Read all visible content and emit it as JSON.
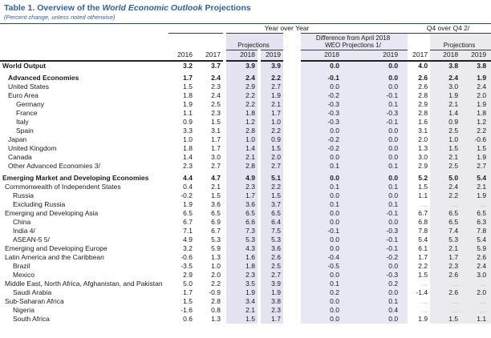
{
  "title": {
    "prefix": "Table 1. Overview of the ",
    "italic": "World Economic Outlook",
    "suffix": " Projections"
  },
  "subtitle": "(Percent change, unless noted otherwise)",
  "header": {
    "group_yoy": "Year over Year",
    "group_q4": "Q4 over Q4 2/",
    "projections_label": "Projections",
    "diff_label_line1": "Difference from April 2018",
    "diff_label_line2": "WEO Projections 1/",
    "q4_projections_label": "Projections",
    "years_yoy": [
      "2016",
      "2017",
      "2018",
      "2019"
    ],
    "years_diff": [
      "2018",
      "2019"
    ],
    "years_q4": [
      "2017",
      "2018",
      "2019"
    ]
  },
  "colors": {
    "title_blue": "#2d5fae",
    "projection_shade": "#e3e3f1",
    "difference_shade": "#e8e8f4",
    "q4_shade": "#eaeaef"
  },
  "rows": [
    {
      "label": "World Output",
      "indent": 3,
      "bold": true,
      "gap": false,
      "yoy": [
        "3.2",
        "3.7",
        "3.9",
        "3.9"
      ],
      "diff": [
        "0.0",
        "0.0"
      ],
      "q4": [
        "4.0",
        "3.8",
        "3.8"
      ]
    },
    {
      "label": "Advanced Economies",
      "indent": 10,
      "bold": true,
      "gap": true,
      "yoy": [
        "1.7",
        "2.4",
        "2.4",
        "2.2"
      ],
      "diff": [
        "-0.1",
        "0.0"
      ],
      "q4": [
        "2.6",
        "2.4",
        "1.9"
      ]
    },
    {
      "label": "United States",
      "indent": 10,
      "bold": false,
      "gap": false,
      "yoy": [
        "1.5",
        "2.3",
        "2.9",
        "2.7"
      ],
      "diff": [
        "0.0",
        "0.0"
      ],
      "q4": [
        "2.6",
        "3.0",
        "2.4"
      ]
    },
    {
      "label": "Euro Area",
      "indent": 10,
      "bold": false,
      "gap": false,
      "yoy": [
        "1.8",
        "2.4",
        "2.2",
        "1.9"
      ],
      "diff": [
        "-0.2",
        "-0.1"
      ],
      "q4": [
        "2.8",
        "1.9",
        "2.0"
      ]
    },
    {
      "label": "Germany",
      "indent": 20,
      "bold": false,
      "gap": false,
      "yoy": [
        "1.9",
        "2.5",
        "2.2",
        "2.1"
      ],
      "diff": [
        "-0.3",
        "0.1"
      ],
      "q4": [
        "2.9",
        "2.1",
        "1.9"
      ]
    },
    {
      "label": "France",
      "indent": 20,
      "bold": false,
      "gap": false,
      "yoy": [
        "1.1",
        "2.3",
        "1.8",
        "1.7"
      ],
      "diff": [
        "-0.3",
        "-0.3"
      ],
      "q4": [
        "2.8",
        "1.4",
        "1.8"
      ]
    },
    {
      "label": "Italy",
      "indent": 20,
      "bold": false,
      "gap": false,
      "yoy": [
        "0.9",
        "1.5",
        "1.2",
        "1.0"
      ],
      "diff": [
        "-0.3",
        "-0.1"
      ],
      "q4": [
        "1.6",
        "0.9",
        "1.2"
      ]
    },
    {
      "label": "Spain",
      "indent": 20,
      "bold": false,
      "gap": false,
      "yoy": [
        "3.3",
        "3.1",
        "2.8",
        "2.2"
      ],
      "diff": [
        "0.0",
        "0.0"
      ],
      "q4": [
        "3.1",
        "2.5",
        "2.2"
      ]
    },
    {
      "label": "Japan",
      "indent": 10,
      "bold": false,
      "gap": false,
      "yoy": [
        "1.0",
        "1.7",
        "1.0",
        "0.9"
      ],
      "diff": [
        "-0.2",
        "0.0"
      ],
      "q4": [
        "2.0",
        "1.0",
        "-0.6"
      ]
    },
    {
      "label": "United Kingdom",
      "indent": 10,
      "bold": false,
      "gap": false,
      "yoy": [
        "1.8",
        "1.7",
        "1.4",
        "1.5"
      ],
      "diff": [
        "-0.2",
        "0.0"
      ],
      "q4": [
        "1.3",
        "1.5",
        "1.5"
      ]
    },
    {
      "label": "Canada",
      "indent": 10,
      "bold": false,
      "gap": false,
      "yoy": [
        "1.4",
        "3.0",
        "2.1",
        "2.0"
      ],
      "diff": [
        "0.0",
        "0.0"
      ],
      "q4": [
        "3.0",
        "2.1",
        "1.9"
      ]
    },
    {
      "label": "Other Advanced Economies 3/",
      "indent": 10,
      "bold": false,
      "gap": false,
      "yoy": [
        "2.3",
        "2.7",
        "2.8",
        "2.7"
      ],
      "diff": [
        "0.1",
        "0.1"
      ],
      "q4": [
        "2.9",
        "2.5",
        "2.7"
      ]
    },
    {
      "label": "Emerging Market and Developing Economies",
      "indent": 3,
      "bold": true,
      "gap": true,
      "yoy": [
        "4.4",
        "4.7",
        "4.9",
        "5.1"
      ],
      "diff": [
        "0.0",
        "0.0"
      ],
      "q4": [
        "5.2",
        "5.0",
        "5.4"
      ]
    },
    {
      "label": "Commonwealth of Independent States",
      "indent": 6,
      "bold": false,
      "gap": false,
      "yoy": [
        "0.4",
        "2.1",
        "2.3",
        "2.2"
      ],
      "diff": [
        "0.1",
        "0.1"
      ],
      "q4": [
        "1.5",
        "2.4",
        "2.1"
      ]
    },
    {
      "label": "Russia",
      "indent": 16,
      "bold": false,
      "gap": false,
      "yoy": [
        "-0.2",
        "1.5",
        "1.7",
        "1.5"
      ],
      "diff": [
        "0.0",
        "0.0"
      ],
      "q4": [
        "1.1",
        "2.2",
        "1.9"
      ]
    },
    {
      "label": "Excluding Russia",
      "indent": 16,
      "bold": false,
      "gap": false,
      "yoy": [
        "1.9",
        "3.6",
        "3.6",
        "3.7"
      ],
      "diff": [
        "0.1",
        "0.1"
      ],
      "q4": [
        "…",
        "…",
        "…"
      ]
    },
    {
      "label": "Emerging and Developing Asia",
      "indent": 6,
      "bold": false,
      "gap": false,
      "yoy": [
        "6.5",
        "6.5",
        "6.5",
        "6.5"
      ],
      "diff": [
        "0.0",
        "-0.1"
      ],
      "q4": [
        "6.7",
        "6.5",
        "6.5"
      ]
    },
    {
      "label": "China",
      "indent": 16,
      "bold": false,
      "gap": false,
      "yoy": [
        "6.7",
        "6.9",
        "6.6",
        "6.4"
      ],
      "diff": [
        "0.0",
        "0.0"
      ],
      "q4": [
        "6.8",
        "6.5",
        "6.3"
      ]
    },
    {
      "label": "India 4/",
      "indent": 16,
      "bold": false,
      "gap": false,
      "yoy": [
        "7.1",
        "6.7",
        "7.3",
        "7.5"
      ],
      "diff": [
        "-0.1",
        "-0.3"
      ],
      "q4": [
        "7.8",
        "7.4",
        "7.8"
      ]
    },
    {
      "label": "ASEAN-5 5/",
      "indent": 16,
      "bold": false,
      "gap": false,
      "yoy": [
        "4.9",
        "5.3",
        "5.3",
        "5.3"
      ],
      "diff": [
        "0.0",
        "-0.1"
      ],
      "q4": [
        "5.4",
        "5.3",
        "5.4"
      ]
    },
    {
      "label": "Emerging and Developing Europe",
      "indent": 6,
      "bold": false,
      "gap": false,
      "yoy": [
        "3.2",
        "5.9",
        "4.3",
        "3.6"
      ],
      "diff": [
        "0.0",
        "-0.1"
      ],
      "q4": [
        "6.1",
        "2.1",
        "5.9"
      ]
    },
    {
      "label": "Latin America and the Caribbean",
      "indent": 6,
      "bold": false,
      "gap": false,
      "yoy": [
        "-0.6",
        "1.3",
        "1.6",
        "2.6"
      ],
      "diff": [
        "-0.4",
        "-0.2"
      ],
      "q4": [
        "1.7",
        "1.7",
        "2.6"
      ]
    },
    {
      "label": "Brazil",
      "indent": 16,
      "bold": false,
      "gap": false,
      "yoy": [
        "-3.5",
        "1.0",
        "1.8",
        "2.5"
      ],
      "diff": [
        "-0.5",
        "0.0"
      ],
      "q4": [
        "2.2",
        "2.3",
        "2.4"
      ]
    },
    {
      "label": "Mexico",
      "indent": 16,
      "bold": false,
      "gap": false,
      "yoy": [
        "2.9",
        "2.0",
        "2.3",
        "2.7"
      ],
      "diff": [
        "0.0",
        "-0.3"
      ],
      "q4": [
        "1.5",
        "2.6",
        "3.0"
      ]
    },
    {
      "label": "Middle East, North Africa, Afghanistan, and Pakistan",
      "indent": 6,
      "bold": false,
      "gap": false,
      "yoy": [
        "5.0",
        "2.2",
        "3.5",
        "3.9"
      ],
      "diff": [
        "0.1",
        "0.2"
      ],
      "q4": [
        "…",
        "…",
        "…"
      ]
    },
    {
      "label": "Saudi Arabia",
      "indent": 16,
      "bold": false,
      "gap": false,
      "yoy": [
        "1.7",
        "-0.9",
        "1.9",
        "1.9"
      ],
      "diff": [
        "0.2",
        "0.0"
      ],
      "q4": [
        "-1.4",
        "2.6",
        "2.0"
      ]
    },
    {
      "label": "Sub-Saharan Africa",
      "indent": 6,
      "bold": false,
      "gap": false,
      "yoy": [
        "1.5",
        "2.8",
        "3.4",
        "3.8"
      ],
      "diff": [
        "0.0",
        "0.1"
      ],
      "q4": [
        "…",
        "…",
        "…"
      ]
    },
    {
      "label": "Nigeria",
      "indent": 16,
      "bold": false,
      "gap": false,
      "yoy": [
        "-1.6",
        "0.8",
        "2.1",
        "2.3"
      ],
      "diff": [
        "0.0",
        "0.4"
      ],
      "q4": [
        "…",
        "…",
        "…"
      ]
    },
    {
      "label": "South Africa",
      "indent": 16,
      "bold": false,
      "gap": false,
      "yoy": [
        "0.6",
        "1.3",
        "1.5",
        "1.7"
      ],
      "diff": [
        "0.0",
        "0.0"
      ],
      "q4": [
        "1.9",
        "1.5",
        "1.1"
      ]
    }
  ]
}
